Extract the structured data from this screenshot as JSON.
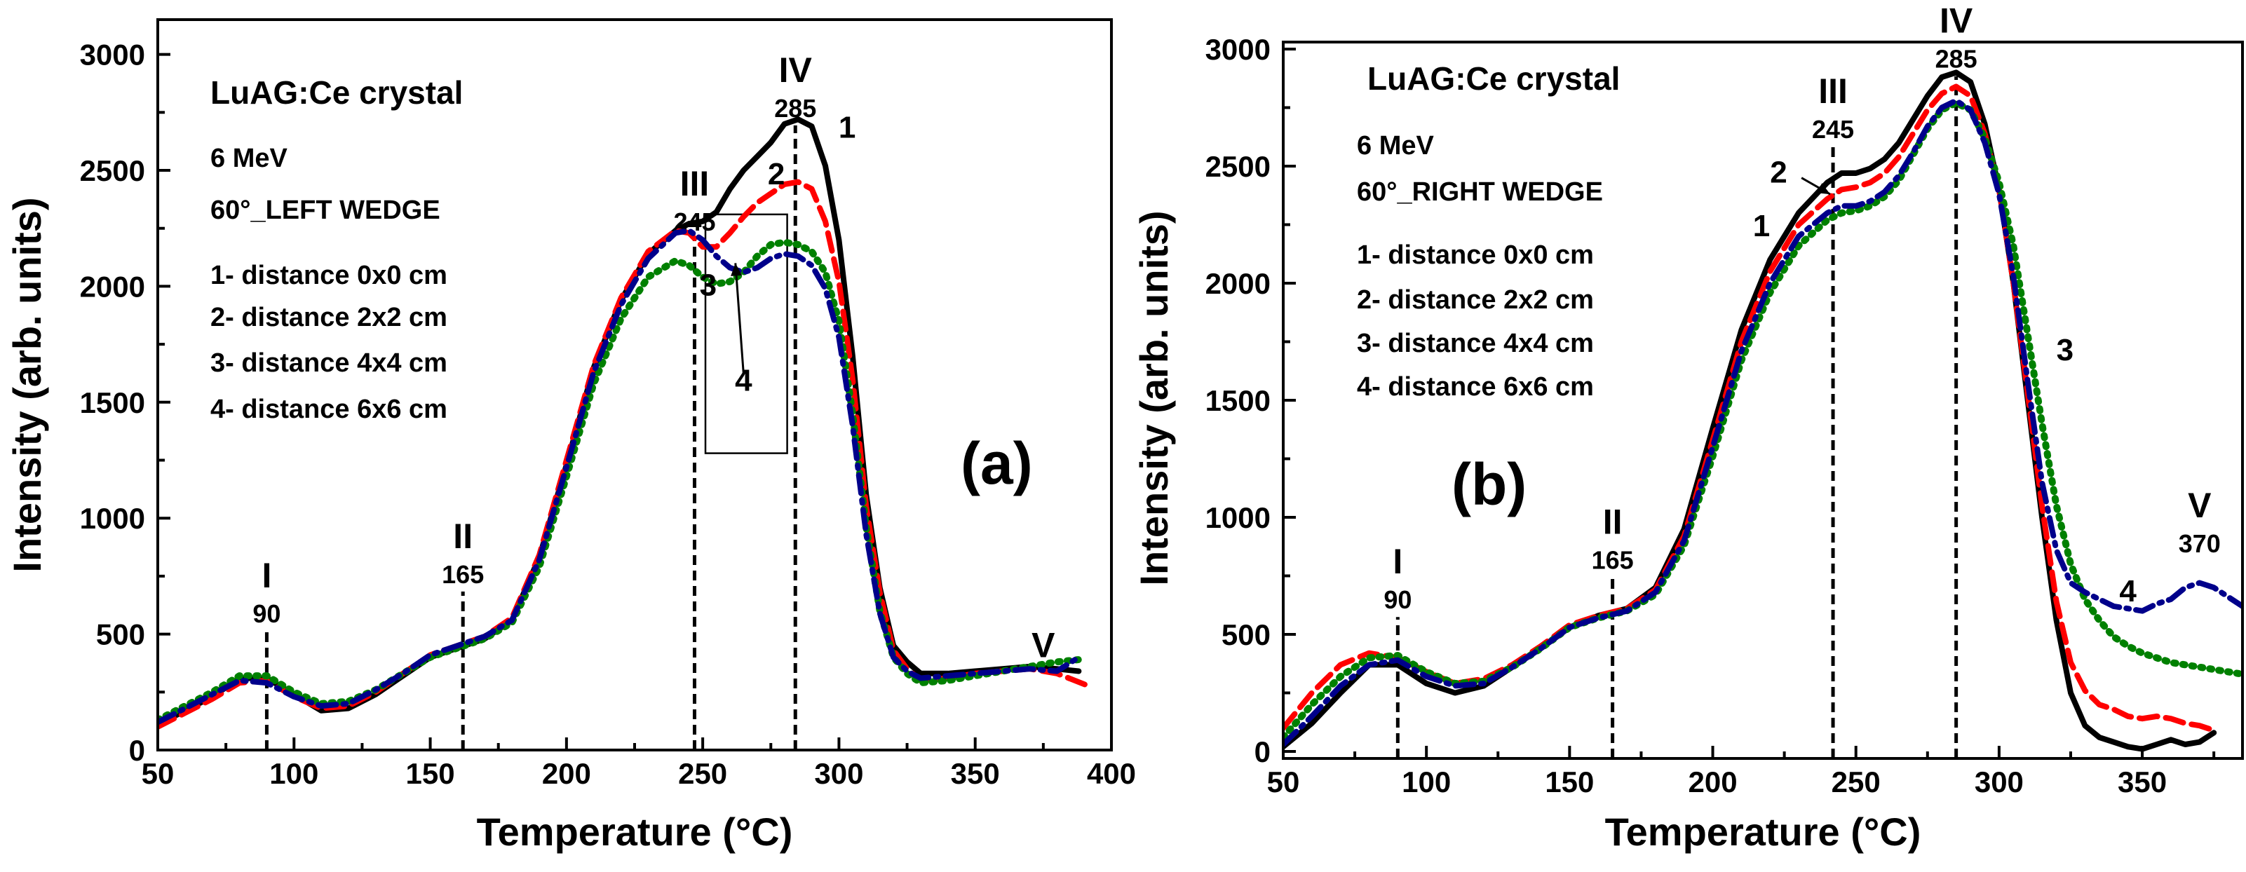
{
  "chart_data": [
    {
      "type": "line",
      "panel": "(a)",
      "title": "LuAG:Ce crystal",
      "info": [
        "6 MeV",
        "60°_LEFT WEDGE"
      ],
      "legend": [
        "1- distance 0x0 cm",
        "2- distance 2x2 cm",
        "3- distance 4x4 cm",
        "4- distance 6x6 cm"
      ],
      "xlabel": "Temperature (°C)",
      "ylabel": "Intensity (arb. units)",
      "xlim": [
        50,
        400
      ],
      "ylim": [
        0,
        3150
      ],
      "xticks": [
        50,
        100,
        150,
        200,
        250,
        300,
        350,
        400
      ],
      "yticks": [
        0,
        500,
        1000,
        1500,
        2000,
        2500,
        3000
      ],
      "peaks": [
        {
          "roman": "I",
          "temp": "90",
          "x": 90,
          "label_y": 550,
          "line": true
        },
        {
          "roman": "II",
          "temp": "165",
          "x": 162,
          "label_y": 720,
          "line": true
        },
        {
          "roman": "III",
          "temp": "245",
          "x": 247,
          "label_y": 2240,
          "line": true
        },
        {
          "roman": "IV",
          "temp": "285",
          "x": 284,
          "label_y": 2730,
          "line": true
        },
        {
          "roman": "V",
          "temp": "",
          "x": 375,
          "label_y": 400,
          "line": false
        }
      ],
      "inset_box": {
        "x": [
          251,
          281
        ],
        "y": [
          1280,
          2310
        ]
      },
      "curve_labels": [
        {
          "text": "1",
          "x": 303,
          "y": 2640
        },
        {
          "text": "2",
          "x": 277,
          "y": 2440
        },
        {
          "text": "3",
          "x": 252,
          "y": 1960
        },
        {
          "text": "4",
          "x": 265,
          "y": 1550
        }
      ],
      "arrow": {
        "from": [
          265,
          1620
        ],
        "to": [
          262,
          2100
        ]
      },
      "series": [
        {
          "name": "1",
          "color": "#000000",
          "style": "solid",
          "x": [
            50,
            60,
            70,
            80,
            90,
            100,
            110,
            120,
            130,
            140,
            150,
            160,
            170,
            180,
            190,
            200,
            210,
            220,
            230,
            240,
            245,
            250,
            255,
            260,
            265,
            270,
            275,
            280,
            285,
            290,
            295,
            300,
            305,
            310,
            315,
            320,
            325,
            330,
            340,
            350,
            360,
            370,
            380,
            388
          ],
          "y": [
            110,
            170,
            230,
            310,
            310,
            240,
            170,
            180,
            240,
            320,
            400,
            440,
            480,
            560,
            830,
            1230,
            1650,
            1940,
            2140,
            2240,
            2270,
            2280,
            2320,
            2420,
            2500,
            2560,
            2620,
            2700,
            2720,
            2690,
            2520,
            2200,
            1700,
            1100,
            700,
            450,
            380,
            330,
            330,
            340,
            350,
            360,
            350,
            340
          ]
        },
        {
          "name": "2",
          "color": "#ff0000",
          "style": "dash",
          "x": [
            50,
            60,
            70,
            80,
            90,
            100,
            110,
            120,
            130,
            140,
            150,
            160,
            170,
            180,
            190,
            200,
            210,
            220,
            230,
            240,
            245,
            250,
            255,
            260,
            265,
            270,
            275,
            280,
            285,
            290,
            295,
            300,
            305,
            310,
            315,
            320,
            325,
            330,
            340,
            350,
            360,
            370,
            380,
            393
          ],
          "y": [
            100,
            160,
            220,
            290,
            300,
            230,
            180,
            190,
            250,
            330,
            410,
            450,
            490,
            570,
            840,
            1250,
            1660,
            1950,
            2150,
            2240,
            2230,
            2170,
            2170,
            2230,
            2300,
            2360,
            2400,
            2440,
            2450,
            2420,
            2280,
            2020,
            1600,
            1050,
            680,
            430,
            350,
            300,
            310,
            330,
            340,
            350,
            330,
            270
          ]
        },
        {
          "name": "3",
          "color": "#008000",
          "style": "dot",
          "x": [
            50,
            60,
            70,
            80,
            90,
            100,
            110,
            120,
            130,
            140,
            150,
            160,
            170,
            180,
            190,
            200,
            210,
            220,
            230,
            240,
            245,
            250,
            255,
            260,
            265,
            270,
            275,
            280,
            285,
            290,
            295,
            300,
            305,
            310,
            315,
            320,
            325,
            330,
            340,
            350,
            360,
            370,
            380,
            388
          ],
          "y": [
            130,
            190,
            250,
            320,
            320,
            250,
            200,
            210,
            260,
            330,
            400,
            440,
            480,
            550,
            790,
            1180,
            1580,
            1860,
            2040,
            2110,
            2090,
            2040,
            2010,
            2020,
            2060,
            2130,
            2180,
            2190,
            2180,
            2150,
            2060,
            1850,
            1450,
            960,
            600,
            400,
            330,
            290,
            300,
            320,
            340,
            360,
            380,
            390
          ]
        },
        {
          "name": "4",
          "color": "#00008b",
          "style": "dashdot",
          "x": [
            50,
            60,
            70,
            80,
            90,
            100,
            110,
            120,
            130,
            140,
            150,
            160,
            170,
            180,
            190,
            200,
            210,
            220,
            230,
            240,
            245,
            250,
            255,
            260,
            265,
            270,
            275,
            280,
            285,
            290,
            295,
            300,
            305,
            310,
            315,
            320,
            325,
            330,
            340,
            350,
            360,
            370,
            380,
            388
          ],
          "y": [
            120,
            180,
            240,
            300,
            290,
            230,
            190,
            200,
            260,
            330,
            410,
            450,
            490,
            560,
            820,
            1220,
            1630,
            1920,
            2120,
            2230,
            2240,
            2200,
            2130,
            2080,
            2060,
            2080,
            2120,
            2140,
            2130,
            2090,
            1990,
            1780,
            1400,
            930,
            590,
            400,
            340,
            310,
            320,
            330,
            340,
            350,
            340,
            400
          ]
        }
      ]
    },
    {
      "type": "line",
      "panel": "(b)",
      "title": "LuAG:Ce crystal",
      "info": [
        "6 MeV",
        "60°_RIGHT WEDGE"
      ],
      "legend": [
        "1- distance 0x0 cm",
        "2- distance 2x2 cm",
        "3- distance 4x4 cm",
        "4- distance 6x6 cm"
      ],
      "xlabel": "Temperature (°C)",
      "ylabel": "Intensity (arb. units)",
      "xlim": [
        50,
        385
      ],
      "ylim": [
        -30,
        3030
      ],
      "xticks": [
        50,
        100,
        150,
        200,
        250,
        300,
        350
      ],
      "yticks": [
        0,
        500,
        1000,
        1500,
        2000,
        2500,
        3000
      ],
      "peaks": [
        {
          "roman": "I",
          "temp": "90",
          "x": 90,
          "label_y": 610,
          "line": true
        },
        {
          "roman": "II",
          "temp": "165",
          "x": 165,
          "label_y": 780,
          "line": true
        },
        {
          "roman": "III",
          "temp": "245",
          "x": 242,
          "label_y": 2620,
          "line": true
        },
        {
          "roman": "IV",
          "temp": "285",
          "x": 285,
          "label_y": 2920,
          "line": true
        },
        {
          "roman": "V",
          "temp": "370",
          "x": 370,
          "label_y": 850,
          "line": false
        }
      ],
      "curve_labels": [
        {
          "text": "1",
          "x": 217,
          "y": 2200
        },
        {
          "text": "2",
          "x": 223,
          "y": 2430
        },
        {
          "text": "3",
          "x": 323,
          "y": 1670
        },
        {
          "text": "4",
          "x": 345,
          "y": 640
        }
      ],
      "arrow": {
        "from": [
          231,
          2450
        ],
        "to": [
          241,
          2380
        ]
      },
      "series": [
        {
          "name": "1",
          "color": "#000000",
          "style": "solid",
          "x": [
            50,
            60,
            70,
            80,
            90,
            100,
            110,
            120,
            130,
            140,
            150,
            160,
            170,
            180,
            190,
            200,
            210,
            220,
            230,
            240,
            245,
            250,
            255,
            260,
            265,
            270,
            275,
            280,
            285,
            290,
            295,
            300,
            305,
            310,
            315,
            320,
            325,
            330,
            335,
            340,
            345,
            350,
            355,
            360,
            365,
            370,
            375
          ],
          "y": [
            20,
            120,
            250,
            370,
            370,
            290,
            250,
            280,
            360,
            440,
            530,
            580,
            610,
            700,
            950,
            1380,
            1800,
            2100,
            2300,
            2430,
            2470,
            2470,
            2490,
            2530,
            2600,
            2700,
            2800,
            2880,
            2900,
            2860,
            2680,
            2400,
            2000,
            1500,
            1000,
            560,
            250,
            110,
            60,
            40,
            20,
            10,
            30,
            50,
            30,
            40,
            80
          ]
        },
        {
          "name": "2",
          "color": "#ff0000",
          "style": "dash",
          "x": [
            50,
            60,
            70,
            80,
            90,
            100,
            110,
            120,
            130,
            140,
            150,
            160,
            170,
            180,
            190,
            200,
            210,
            220,
            230,
            240,
            245,
            250,
            255,
            260,
            265,
            270,
            275,
            280,
            285,
            290,
            295,
            300,
            305,
            310,
            315,
            320,
            325,
            330,
            335,
            340,
            345,
            350,
            355,
            360,
            365,
            370,
            375
          ],
          "y": [
            100,
            250,
            370,
            420,
            400,
            340,
            290,
            310,
            370,
            450,
            540,
            580,
            610,
            690,
            920,
            1330,
            1750,
            2050,
            2250,
            2360,
            2400,
            2410,
            2430,
            2470,
            2540,
            2640,
            2740,
            2810,
            2840,
            2800,
            2640,
            2400,
            2000,
            1530,
            1050,
            640,
            380,
            260,
            200,
            180,
            150,
            140,
            150,
            140,
            120,
            110,
            90
          ]
        },
        {
          "name": "3",
          "color": "#008000",
          "style": "dot",
          "x": [
            50,
            60,
            70,
            80,
            90,
            100,
            110,
            120,
            130,
            140,
            150,
            160,
            170,
            180,
            190,
            200,
            210,
            220,
            230,
            240,
            245,
            250,
            255,
            260,
            265,
            270,
            275,
            280,
            285,
            290,
            295,
            300,
            305,
            310,
            315,
            320,
            325,
            330,
            335,
            340,
            345,
            350,
            355,
            360,
            365,
            370,
            375,
            385
          ],
          "y": [
            60,
            200,
            320,
            400,
            410,
            340,
            290,
            300,
            360,
            440,
            530,
            570,
            600,
            670,
            880,
            1260,
            1670,
            1960,
            2160,
            2270,
            2300,
            2310,
            2330,
            2370,
            2440,
            2550,
            2660,
            2740,
            2770,
            2740,
            2620,
            2430,
            2160,
            1780,
            1400,
            1050,
            800,
            650,
            560,
            490,
            450,
            420,
            400,
            380,
            370,
            360,
            350,
            330
          ]
        },
        {
          "name": "4",
          "color": "#00008b",
          "style": "dashdot",
          "x": [
            50,
            60,
            70,
            80,
            90,
            100,
            110,
            120,
            130,
            140,
            150,
            160,
            170,
            180,
            190,
            200,
            210,
            220,
            230,
            240,
            245,
            250,
            255,
            260,
            265,
            270,
            275,
            280,
            285,
            290,
            295,
            300,
            305,
            310,
            315,
            320,
            325,
            330,
            335,
            340,
            345,
            350,
            355,
            360,
            365,
            370,
            375,
            385
          ],
          "y": [
            30,
            150,
            280,
            370,
            390,
            320,
            280,
            290,
            360,
            440,
            530,
            570,
            600,
            680,
            900,
            1300,
            1710,
            2000,
            2200,
            2300,
            2330,
            2330,
            2350,
            2390,
            2460,
            2560,
            2670,
            2750,
            2780,
            2740,
            2600,
            2380,
            2030,
            1580,
            1150,
            860,
            720,
            680,
            650,
            620,
            610,
            600,
            630,
            650,
            700,
            720,
            700,
            620
          ]
        }
      ]
    }
  ]
}
